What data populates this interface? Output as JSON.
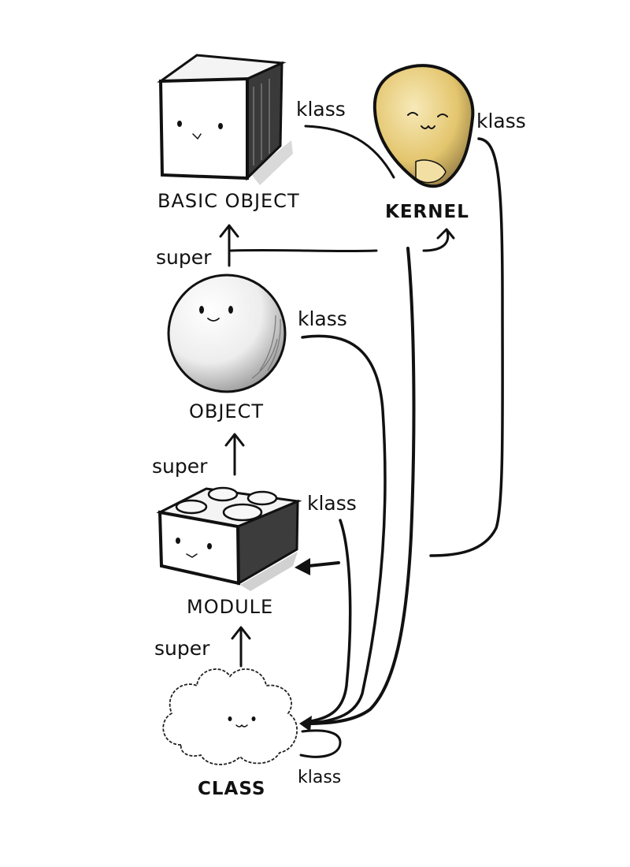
{
  "nodes": {
    "basic_object": {
      "label": "BASIC OBJECT"
    },
    "kernel": {
      "label": "KERNEL",
      "color": "#e8cf7e"
    },
    "object": {
      "label": "OBJECT"
    },
    "module": {
      "label": "MODULE"
    },
    "class": {
      "label": "CLASS"
    }
  },
  "edges": {
    "basic_object_klass": "klass",
    "kernel_klass": "klass",
    "object_klass": "klass",
    "module_klass": "klass",
    "class_klass": "klass",
    "object_super": "super",
    "module_super": "super",
    "class_super": "super"
  }
}
